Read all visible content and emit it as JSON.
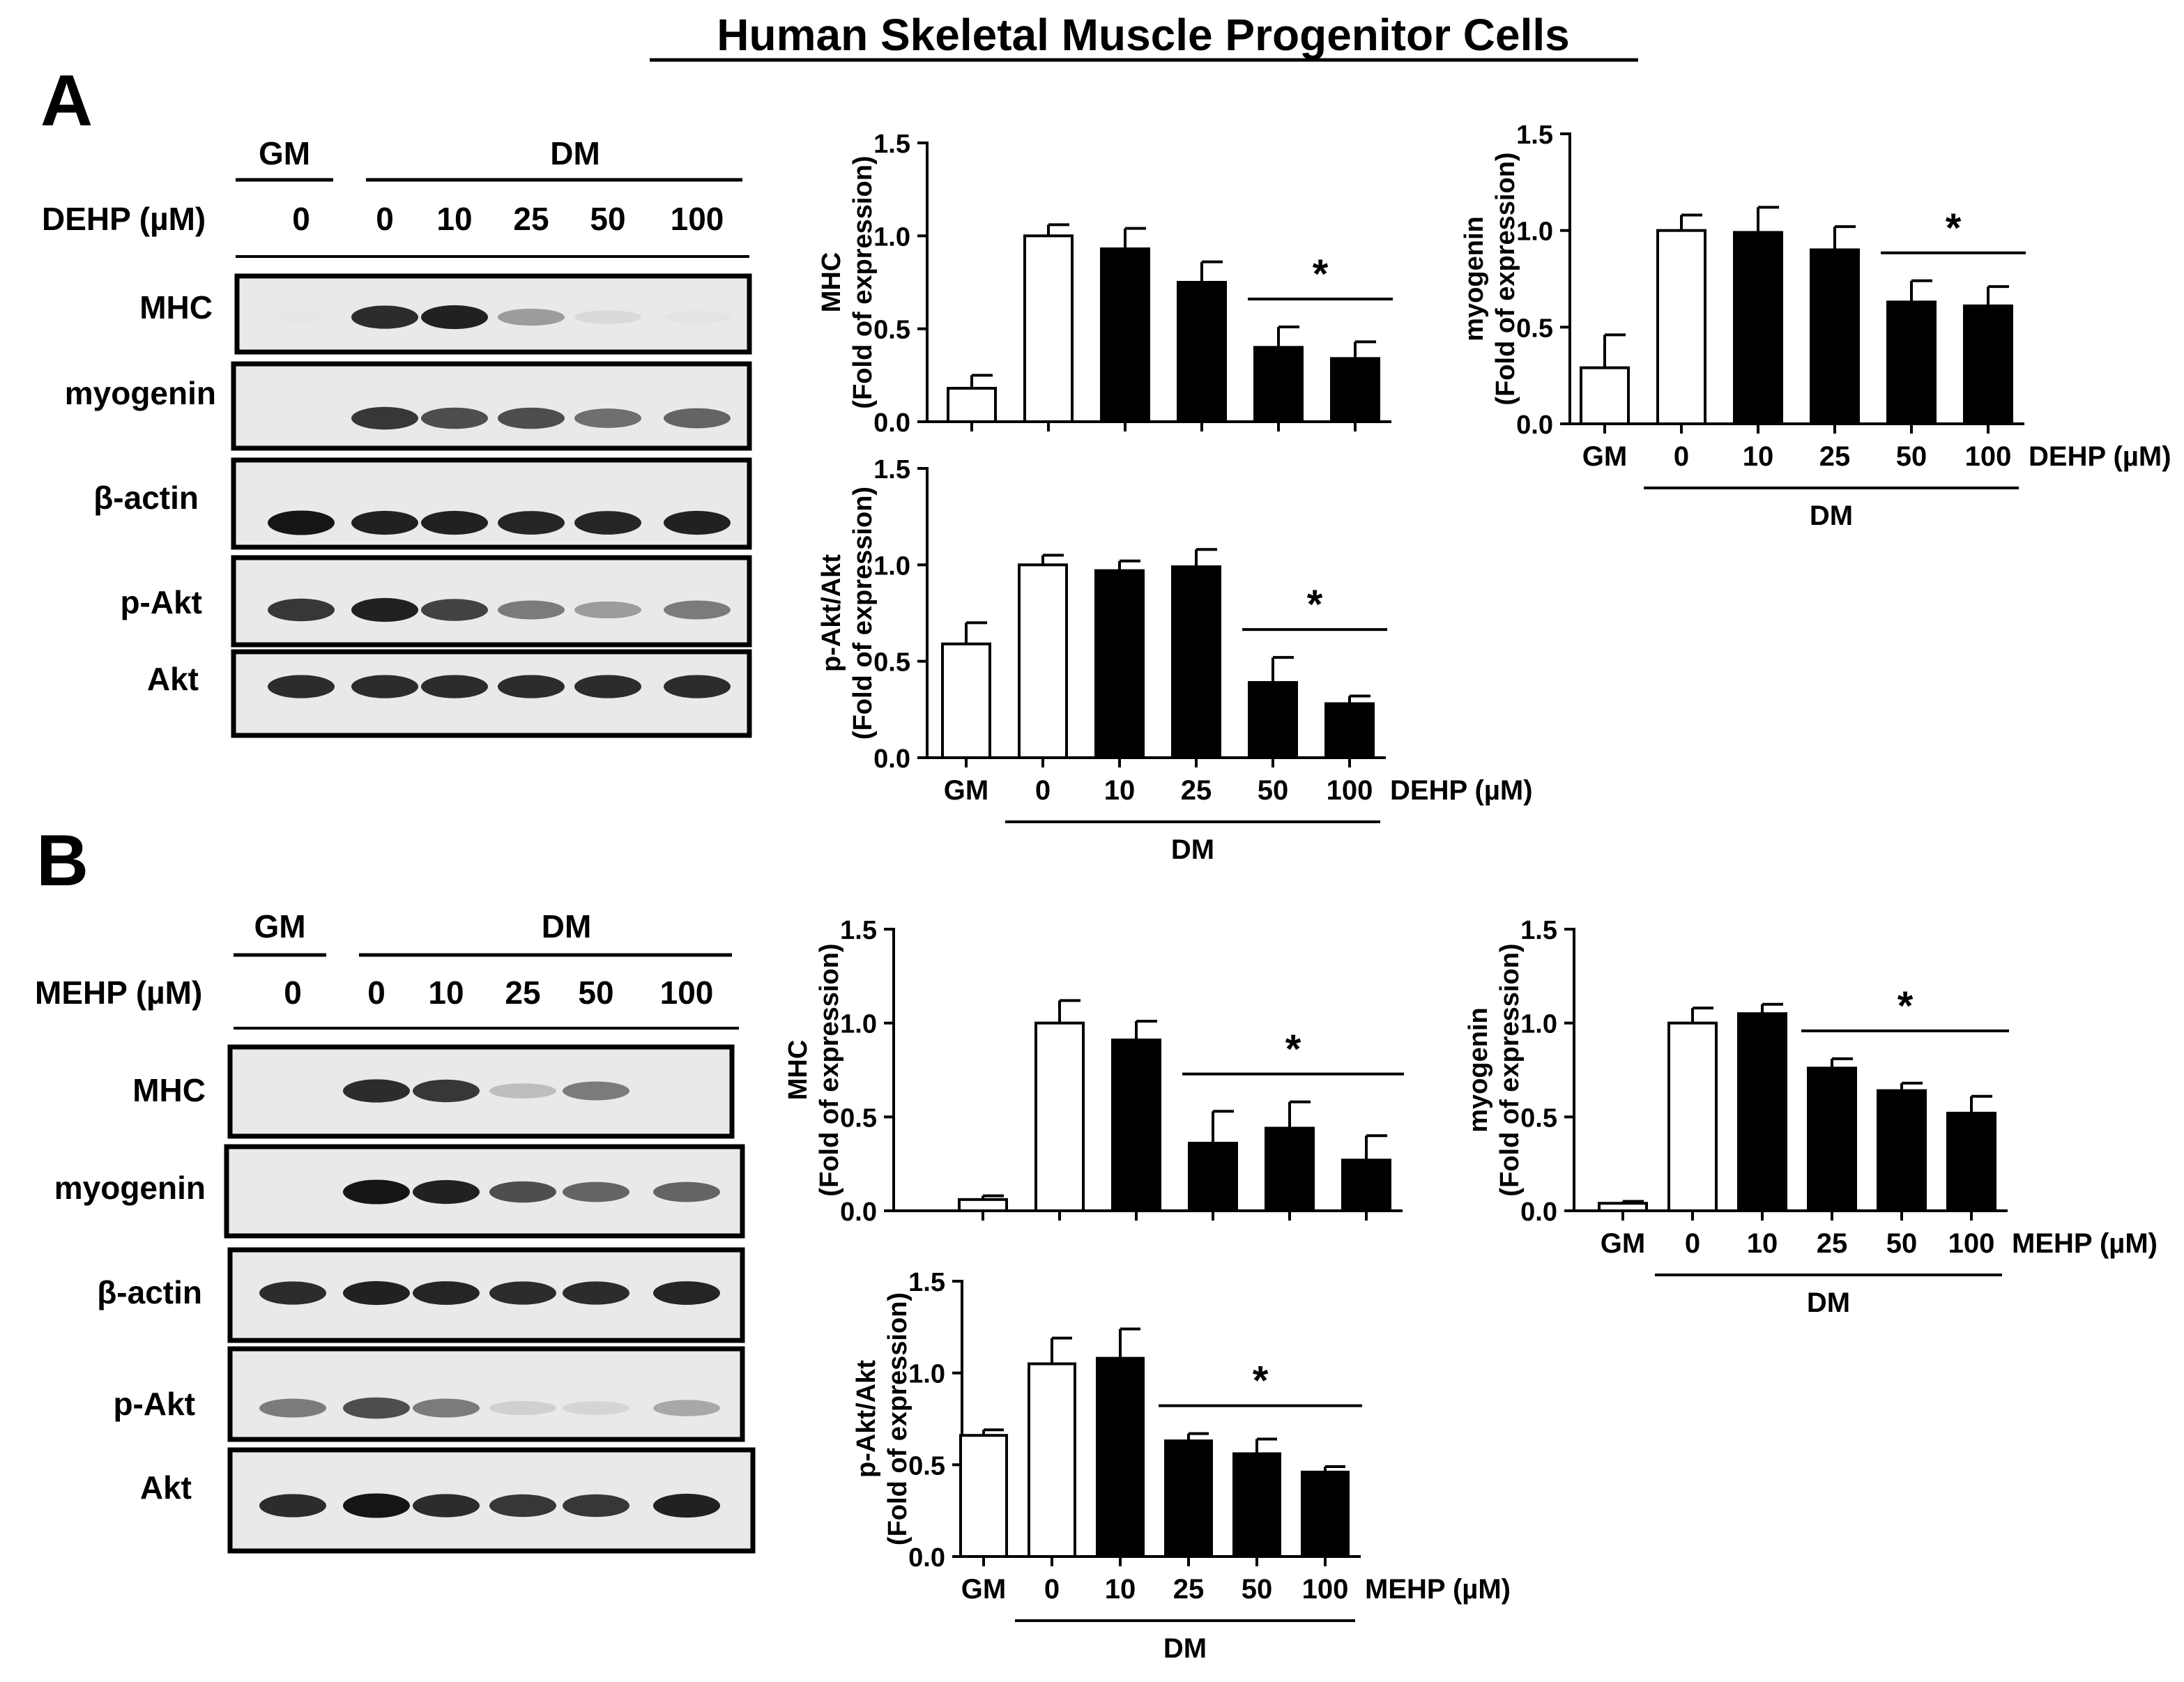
{
  "figure_title": "Human Skeletal Muscle Progenitor Cells",
  "panels": [
    {
      "letter": "A",
      "treatment_label": "DEHP (µM)",
      "group_gm": "GM",
      "group_dm": "DM",
      "lanes": [
        "0",
        "0",
        "10",
        "25",
        "50",
        "100"
      ],
      "blots": [
        {
          "label": "MHC",
          "intensities": [
            0.02,
            0.85,
            0.9,
            0.35,
            0.08,
            0.03
          ]
        },
        {
          "label": "myogenin",
          "intensities": [
            0.0,
            0.8,
            0.7,
            0.7,
            0.55,
            0.6
          ]
        },
        {
          "label": "β-actin",
          "intensities": [
            0.95,
            0.9,
            0.9,
            0.88,
            0.88,
            0.9
          ]
        },
        {
          "label": "p-Akt",
          "intensities": [
            0.8,
            0.9,
            0.75,
            0.5,
            0.35,
            0.5
          ]
        },
        {
          "label": "Akt",
          "intensities": [
            0.85,
            0.85,
            0.85,
            0.85,
            0.85,
            0.85
          ]
        }
      ]
    },
    {
      "letter": "B",
      "treatment_label": "MEHP (µM)",
      "group_gm": "GM",
      "group_dm": "DM",
      "lanes": [
        "0",
        "0",
        "10",
        "25",
        "50",
        "100"
      ],
      "blots": [
        {
          "label": "MHC",
          "intensities": [
            0.0,
            0.85,
            0.8,
            0.2,
            0.5,
            0.0
          ]
        },
        {
          "label": "myogenin",
          "intensities": [
            0.0,
            0.95,
            0.9,
            0.7,
            0.6,
            0.6
          ]
        },
        {
          "label": "β-actin",
          "intensities": [
            0.85,
            0.9,
            0.88,
            0.85,
            0.85,
            0.88
          ]
        },
        {
          "label": "p-Akt",
          "intensities": [
            0.5,
            0.7,
            0.5,
            0.12,
            0.1,
            0.3
          ]
        },
        {
          "label": "Akt",
          "intensities": [
            0.85,
            0.95,
            0.85,
            0.8,
            0.8,
            0.9
          ]
        }
      ]
    }
  ],
  "chart_data": [
    {
      "type": "bar",
      "panel": "A",
      "categories": [
        "GM",
        "0",
        "10",
        "25",
        "50",
        "100"
      ],
      "values": [
        0.18,
        1.0,
        0.93,
        0.75,
        0.4,
        0.34
      ],
      "errors": [
        0.07,
        0.06,
        0.11,
        0.11,
        0.11,
        0.09
      ],
      "fills": [
        "white",
        "white",
        "black",
        "black",
        "black",
        "black"
      ],
      "ylabel": [
        "MHC",
        "(Fold of expression)"
      ],
      "ylim": [
        0,
        1.5
      ],
      "yticks": [
        "0.0",
        "0.5",
        "1.0",
        "1.5"
      ],
      "show_xlabels": false,
      "treatment_label": "",
      "group_label": "",
      "significance": {
        "text": "*",
        "from": 4,
        "to": 5
      }
    },
    {
      "type": "bar",
      "panel": "A",
      "categories": [
        "GM",
        "0",
        "10",
        "25",
        "50",
        "100"
      ],
      "values": [
        0.29,
        1.0,
        0.99,
        0.9,
        0.63,
        0.61
      ],
      "errors": [
        0.17,
        0.08,
        0.13,
        0.12,
        0.11,
        0.1
      ],
      "fills": [
        "white",
        "white",
        "black",
        "black",
        "black",
        "black"
      ],
      "ylabel": [
        "myogenin",
        "(Fold of expression)"
      ],
      "ylim": [
        0,
        1.5
      ],
      "yticks": [
        "0.0",
        "0.5",
        "1.0",
        "1.5"
      ],
      "show_xlabels": true,
      "treatment_label": "DEHP (µM)",
      "group_label": "DM",
      "significance": {
        "text": "*",
        "from": 4,
        "to": 5
      }
    },
    {
      "type": "bar",
      "panel": "A",
      "categories": [
        "GM",
        "0",
        "10",
        "25",
        "50",
        "100"
      ],
      "values": [
        0.59,
        1.0,
        0.97,
        0.99,
        0.39,
        0.28
      ],
      "errors": [
        0.11,
        0.05,
        0.05,
        0.09,
        0.13,
        0.04
      ],
      "fills": [
        "white",
        "white",
        "black",
        "black",
        "black",
        "black"
      ],
      "ylabel": [
        "p-Akt/Akt",
        "(Fold of expression)"
      ],
      "ylim": [
        0,
        1.5
      ],
      "yticks": [
        "0.0",
        "0.5",
        "1.0",
        "1.5"
      ],
      "show_xlabels": true,
      "treatment_label": "DEHP (µM)",
      "group_label": "DM",
      "significance": {
        "text": "*",
        "from": 4,
        "to": 5
      }
    },
    {
      "type": "bar",
      "panel": "B",
      "categories": [
        "GM",
        "0",
        "10",
        "25",
        "50",
        "100"
      ],
      "values": [
        0.06,
        1.0,
        0.91,
        0.36,
        0.44,
        0.27
      ],
      "errors": [
        0.02,
        0.12,
        0.1,
        0.17,
        0.14,
        0.13
      ],
      "fills": [
        "white",
        "white",
        "black",
        "black",
        "black",
        "black"
      ],
      "ylabel": [
        "MHC",
        "(Fold of expression)"
      ],
      "ylim": [
        0,
        1.5
      ],
      "yticks": [
        "0.0",
        "0.5",
        "1.0",
        "1.5"
      ],
      "show_xlabels": false,
      "treatment_label": "",
      "group_label": "",
      "significance": {
        "text": "*",
        "from": 3,
        "to": 5
      }
    },
    {
      "type": "bar",
      "panel": "B",
      "categories": [
        "GM",
        "0",
        "10",
        "25",
        "50",
        "100"
      ],
      "values": [
        0.04,
        1.0,
        1.05,
        0.76,
        0.64,
        0.52
      ],
      "errors": [
        0.01,
        0.08,
        0.05,
        0.05,
        0.04,
        0.09
      ],
      "fills": [
        "white",
        "white",
        "black",
        "black",
        "black",
        "black"
      ],
      "ylabel": [
        "myogenin",
        "(Fold of expression)"
      ],
      "ylim": [
        0,
        1.5
      ],
      "yticks": [
        "0.0",
        "0.5",
        "1.0",
        "1.5"
      ],
      "show_xlabels": true,
      "treatment_label": "MEHP (µM)",
      "group_label": "DM",
      "significance": {
        "text": "*",
        "from": 3,
        "to": 5
      }
    },
    {
      "type": "bar",
      "panel": "B",
      "categories": [
        "GM",
        "0",
        "10",
        "25",
        "50",
        "100"
      ],
      "values": [
        0.66,
        1.05,
        1.08,
        0.63,
        0.56,
        0.46
      ],
      "errors": [
        0.03,
        0.14,
        0.16,
        0.04,
        0.08,
        0.03
      ],
      "fills": [
        "white",
        "white",
        "black",
        "black",
        "black",
        "black"
      ],
      "ylabel": [
        "p-Akt/Akt",
        "(Fold of expression)"
      ],
      "ylim": [
        0,
        1.5
      ],
      "yticks": [
        "0.0",
        "0.5",
        "1.0",
        "1.5"
      ],
      "show_xlabels": true,
      "treatment_label": "MEHP (µM)",
      "group_label": "DM",
      "significance": {
        "text": "*",
        "from": 3,
        "to": 5
      }
    }
  ]
}
